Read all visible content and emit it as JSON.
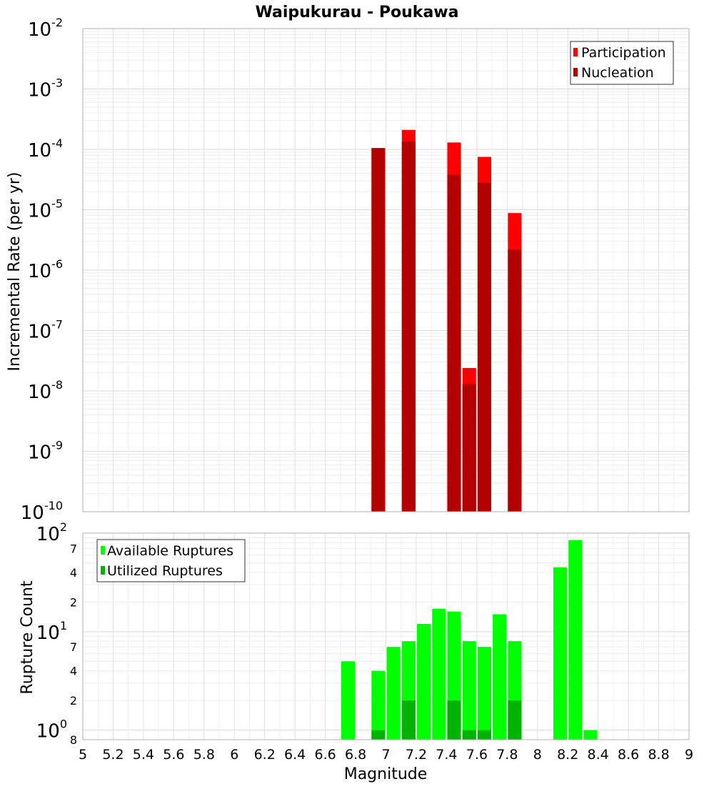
{
  "chart_data": [
    {
      "type": "bar",
      "title": "Waipukurau - Poukawa",
      "xlabel": "",
      "ylabel": "Incremental Rate (per yr)",
      "yscale": "log",
      "xlim": [
        5,
        9
      ],
      "ylim": [
        1e-10,
        0.01
      ],
      "y_ticks": [
        {
          "base": "10",
          "exp": "-2"
        },
        {
          "base": "10",
          "exp": "-3"
        },
        {
          "base": "10",
          "exp": "-4"
        },
        {
          "base": "10",
          "exp": "-5"
        },
        {
          "base": "10",
          "exp": "-6"
        },
        {
          "base": "10",
          "exp": "-7"
        },
        {
          "base": "10",
          "exp": "-8"
        },
        {
          "base": "10",
          "exp": "-9"
        },
        {
          "base": "10",
          "exp": "-10"
        }
      ],
      "legend_position": "top-right",
      "grid": true,
      "series": [
        {
          "name": "Participation",
          "color": "#ff0000",
          "points": [
            {
              "x": 6.95,
              "y": 0.000105
            },
            {
              "x": 7.15,
              "y": 0.00021
            },
            {
              "x": 7.45,
              "y": 0.00013
            },
            {
              "x": 7.55,
              "y": 2.4e-08
            },
            {
              "x": 7.65,
              "y": 7.5e-05
            },
            {
              "x": 7.85,
              "y": 8.8e-06
            }
          ]
        },
        {
          "name": "Nucleation",
          "color": "#b30000",
          "points": [
            {
              "x": 6.95,
              "y": 0.000105
            },
            {
              "x": 7.15,
              "y": 0.000135
            },
            {
              "x": 7.45,
              "y": 3.8e-05
            },
            {
              "x": 7.55,
              "y": 1.3e-08
            },
            {
              "x": 7.65,
              "y": 2.8e-05
            },
            {
              "x": 7.85,
              "y": 2.2e-06
            }
          ]
        }
      ]
    },
    {
      "type": "bar",
      "title": "",
      "xlabel": "Magnitude",
      "ylabel": "Rupture Count",
      "yscale": "log",
      "xlim": [
        5,
        9
      ],
      "ylim": [
        0.8,
        100
      ],
      "x_ticks": [
        "5",
        "5.2",
        "5.4",
        "5.6",
        "5.8",
        "6",
        "6.2",
        "6.4",
        "6.6",
        "6.8",
        "7",
        "7.2",
        "7.4",
        "7.6",
        "7.8",
        "8",
        "8.2",
        "8.4",
        "8.6",
        "8.8",
        "9"
      ],
      "y_major_ticks": [
        {
          "value": 100,
          "base": "10",
          "exp": "2"
        },
        {
          "value": 10,
          "base": "10",
          "exp": "1"
        },
        {
          "value": 1,
          "base": "10",
          "exp": "0"
        }
      ],
      "y_minor_ticks": [
        {
          "value": 70,
          "label": "7"
        },
        {
          "value": 40,
          "label": "4"
        },
        {
          "value": 20,
          "label": "2"
        },
        {
          "value": 7,
          "label": "7"
        },
        {
          "value": 4,
          "label": "4"
        },
        {
          "value": 2,
          "label": "2"
        },
        {
          "value": 0.8,
          "label": "8"
        }
      ],
      "legend_position": "top-left",
      "grid": true,
      "series": [
        {
          "name": "Available Ruptures",
          "color": "#00ff00",
          "points": [
            {
              "x": 6.75,
              "y": 5
            },
            {
              "x": 6.95,
              "y": 4
            },
            {
              "x": 7.05,
              "y": 7
            },
            {
              "x": 7.15,
              "y": 8
            },
            {
              "x": 7.25,
              "y": 12
            },
            {
              "x": 7.35,
              "y": 17
            },
            {
              "x": 7.45,
              "y": 16
            },
            {
              "x": 7.55,
              "y": 8
            },
            {
              "x": 7.65,
              "y": 7
            },
            {
              "x": 7.75,
              "y": 15
            },
            {
              "x": 7.85,
              "y": 8
            },
            {
              "x": 8.15,
              "y": 45
            },
            {
              "x": 8.25,
              "y": 85
            },
            {
              "x": 8.35,
              "y": 1
            }
          ]
        },
        {
          "name": "Utilized Ruptures",
          "color": "#00b300",
          "points": [
            {
              "x": 6.95,
              "y": 1
            },
            {
              "x": 7.15,
              "y": 2
            },
            {
              "x": 7.45,
              "y": 2
            },
            {
              "x": 7.55,
              "y": 1
            },
            {
              "x": 7.65,
              "y": 1
            },
            {
              "x": 7.85,
              "y": 2
            }
          ]
        }
      ]
    }
  ]
}
